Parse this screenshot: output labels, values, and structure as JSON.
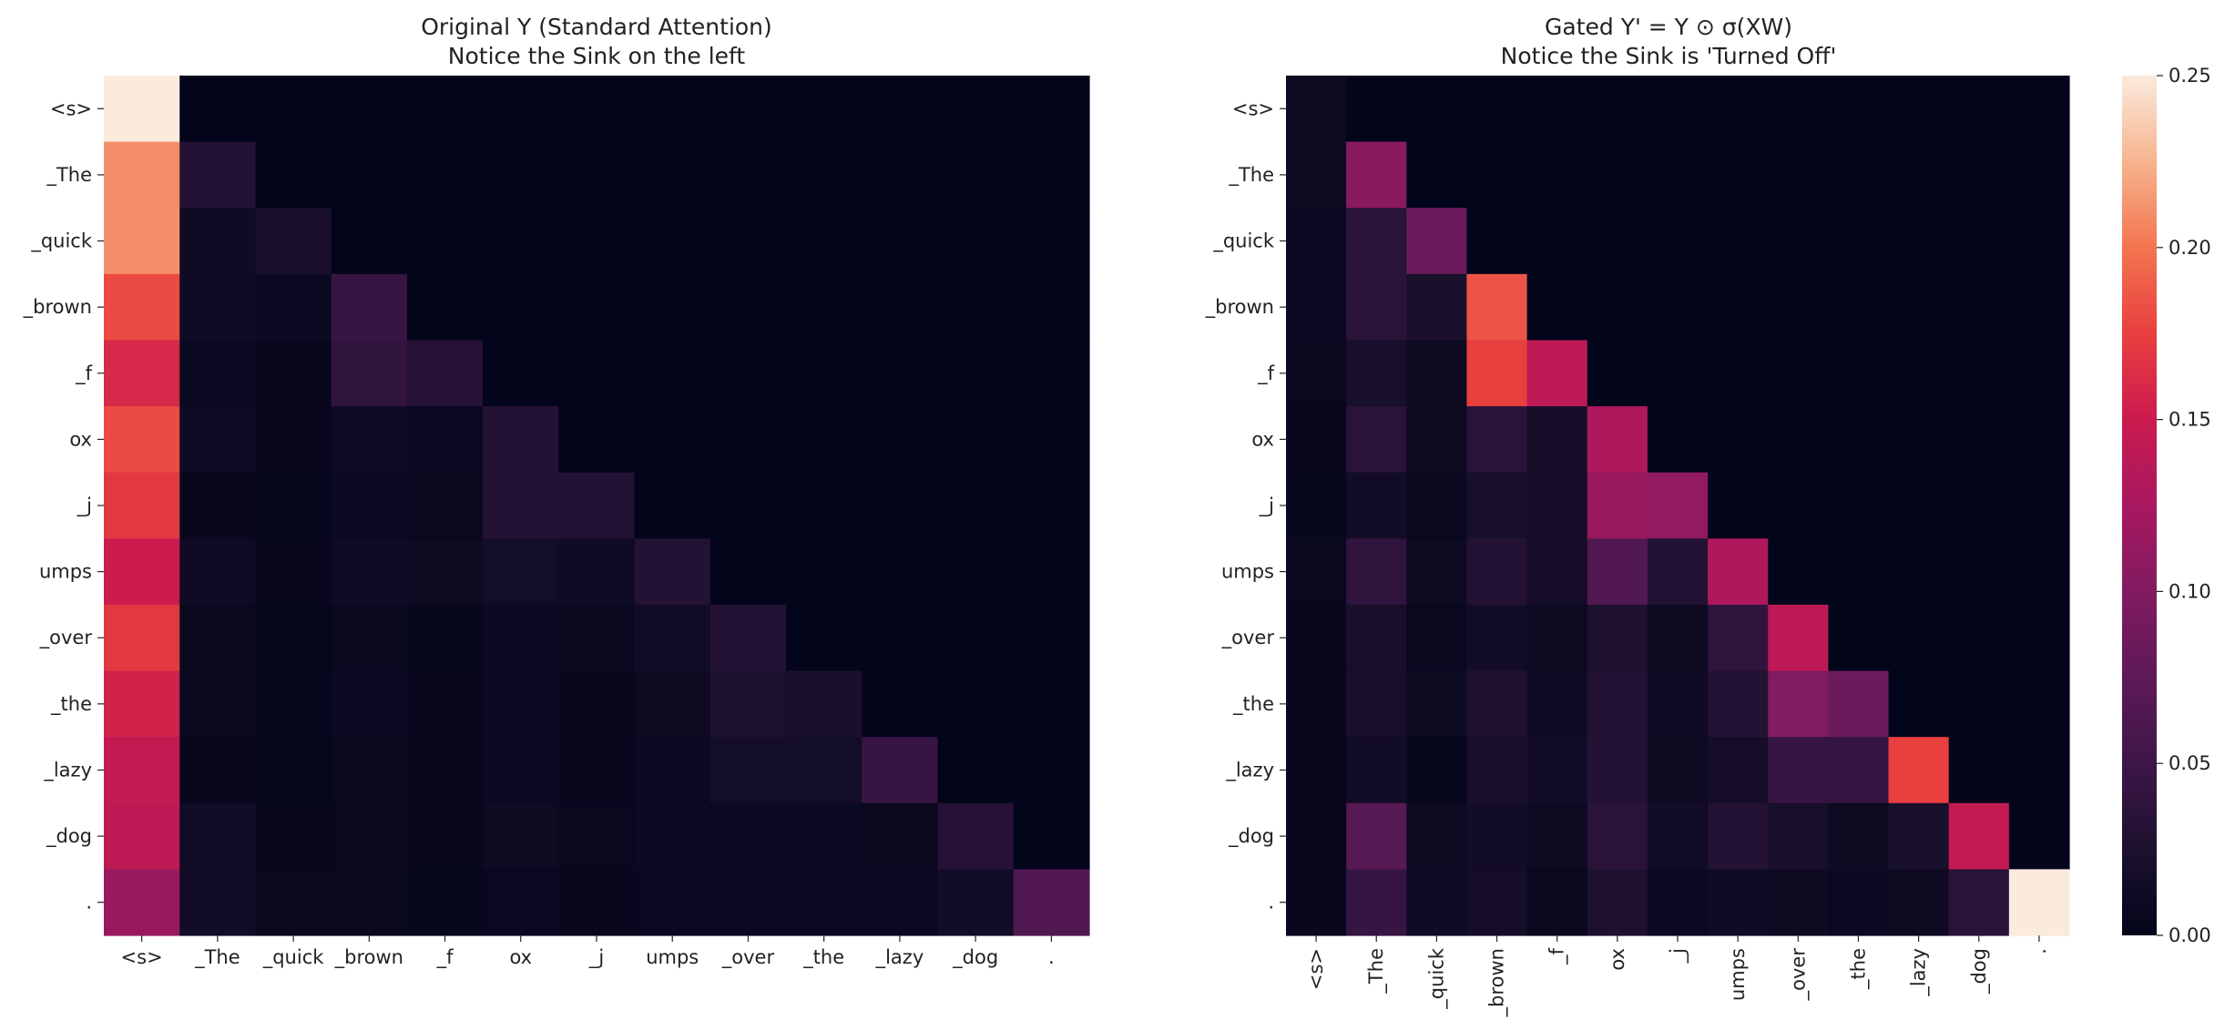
{
  "chart_data": [
    {
      "type": "heatmap",
      "title": "Original Y (Standard Attention)\nNotice the Sink on the left",
      "x_labels": [
        "<s>",
        "_The",
        "_quick",
        "_brown",
        "_f",
        "ox",
        "_j",
        "umps",
        "_over",
        "_the",
        "_lazy",
        "_dog",
        "."
      ],
      "y_labels": [
        "<s>",
        "_The",
        "_quick",
        "_brown",
        "_f",
        "ox",
        "_j",
        "umps",
        "_over",
        "_the",
        "_lazy",
        "_dog",
        "."
      ],
      "colormap": "rocket",
      "vmin": 0,
      "vmax": 0.25,
      "values": [
        [
          0.25,
          0,
          0,
          0,
          0,
          0,
          0,
          0,
          0,
          0,
          0,
          0,
          0
        ],
        [
          0.21,
          0.03,
          0,
          0,
          0,
          0,
          0,
          0,
          0,
          0,
          0,
          0,
          0
        ],
        [
          0.21,
          0.012,
          0.022,
          0,
          0,
          0,
          0,
          0,
          0,
          0,
          0,
          0,
          0
        ],
        [
          0.18,
          0.012,
          0.008,
          0.045,
          0,
          0,
          0,
          0,
          0,
          0,
          0,
          0,
          0
        ],
        [
          0.16,
          0.008,
          0.005,
          0.04,
          0.032,
          0,
          0,
          0,
          0,
          0,
          0,
          0,
          0
        ],
        [
          0.18,
          0.012,
          0.005,
          0.012,
          0.008,
          0.03,
          0,
          0,
          0,
          0,
          0,
          0,
          0
        ],
        [
          0.17,
          0.005,
          0.004,
          0.008,
          0.006,
          0.03,
          0.03,
          0,
          0,
          0,
          0,
          0,
          0
        ],
        [
          0.15,
          0.012,
          0.005,
          0.012,
          0.01,
          0.016,
          0.012,
          0.03,
          0,
          0,
          0,
          0,
          0
        ],
        [
          0.17,
          0.006,
          0.003,
          0.006,
          0.004,
          0.008,
          0.006,
          0.014,
          0.03,
          0,
          0,
          0,
          0
        ],
        [
          0.155,
          0.006,
          0.004,
          0.008,
          0.005,
          0.008,
          0.005,
          0.01,
          0.024,
          0.022,
          0,
          0,
          0
        ],
        [
          0.145,
          0.005,
          0.003,
          0.006,
          0.005,
          0.008,
          0.005,
          0.008,
          0.016,
          0.016,
          0.045,
          0,
          0
        ],
        [
          0.14,
          0.014,
          0.005,
          0.006,
          0.005,
          0.01,
          0.006,
          0.009,
          0.008,
          0.008,
          0.006,
          0.032,
          0
        ],
        [
          0.115,
          0.014,
          0.006,
          0.006,
          0.004,
          0.007,
          0.005,
          0.007,
          0.007,
          0.007,
          0.007,
          0.014,
          0.065
        ]
      ]
    },
    {
      "type": "heatmap",
      "title": "Gated Y' = Y ⊙ σ(XW)\nNotice the Sink is 'Turned Off'",
      "x_labels": [
        "<s>",
        "_The",
        "_quick",
        "_brown",
        "_f",
        "ox",
        "_j",
        "umps",
        "_over",
        "_the",
        "_lazy",
        "_dog",
        "."
      ],
      "y_labels": [
        "<s>",
        "_The",
        "_quick",
        "_brown",
        "_f",
        "ox",
        "_j",
        "umps",
        "_over",
        "_the",
        "_lazy",
        "_dog",
        "."
      ],
      "colormap": "rocket",
      "vmin": 0,
      "vmax": 0.25,
      "colorbar_ticks": [
        "0.00",
        "0.05",
        "0.10",
        "0.15",
        "0.20",
        "0.25"
      ],
      "values": [
        [
          0.01,
          0,
          0,
          0,
          0,
          0,
          0,
          0,
          0,
          0,
          0,
          0,
          0
        ],
        [
          0.01,
          0.105,
          0,
          0,
          0,
          0,
          0,
          0,
          0,
          0,
          0,
          0,
          0
        ],
        [
          0.008,
          0.035,
          0.085,
          0,
          0,
          0,
          0,
          0,
          0,
          0,
          0,
          0,
          0
        ],
        [
          0.008,
          0.035,
          0.022,
          0.185,
          0,
          0,
          0,
          0,
          0,
          0,
          0,
          0,
          0
        ],
        [
          0.006,
          0.02,
          0.01,
          0.175,
          0.14,
          0,
          0,
          0,
          0,
          0,
          0,
          0,
          0
        ],
        [
          0.005,
          0.035,
          0.01,
          0.035,
          0.018,
          0.13,
          0,
          0,
          0,
          0,
          0,
          0,
          0
        ],
        [
          0.004,
          0.014,
          0.006,
          0.02,
          0.018,
          0.115,
          0.11,
          0,
          0,
          0,
          0,
          0,
          0
        ],
        [
          0.006,
          0.04,
          0.01,
          0.03,
          0.018,
          0.065,
          0.03,
          0.13,
          0,
          0,
          0,
          0,
          0
        ],
        [
          0.005,
          0.02,
          0.006,
          0.015,
          0.01,
          0.025,
          0.01,
          0.04,
          0.14,
          0,
          0,
          0,
          0
        ],
        [
          0.005,
          0.02,
          0.01,
          0.025,
          0.012,
          0.03,
          0.012,
          0.03,
          0.1,
          0.085,
          0,
          0,
          0
        ],
        [
          0.005,
          0.015,
          0.004,
          0.02,
          0.015,
          0.03,
          0.01,
          0.018,
          0.045,
          0.045,
          0.175,
          0,
          0
        ],
        [
          0.005,
          0.07,
          0.01,
          0.015,
          0.01,
          0.035,
          0.014,
          0.03,
          0.02,
          0.01,
          0.02,
          0.145,
          0
        ],
        [
          0.005,
          0.045,
          0.012,
          0.018,
          0.006,
          0.025,
          0.008,
          0.012,
          0.01,
          0.008,
          0.01,
          0.035,
          0.25
        ]
      ]
    }
  ]
}
